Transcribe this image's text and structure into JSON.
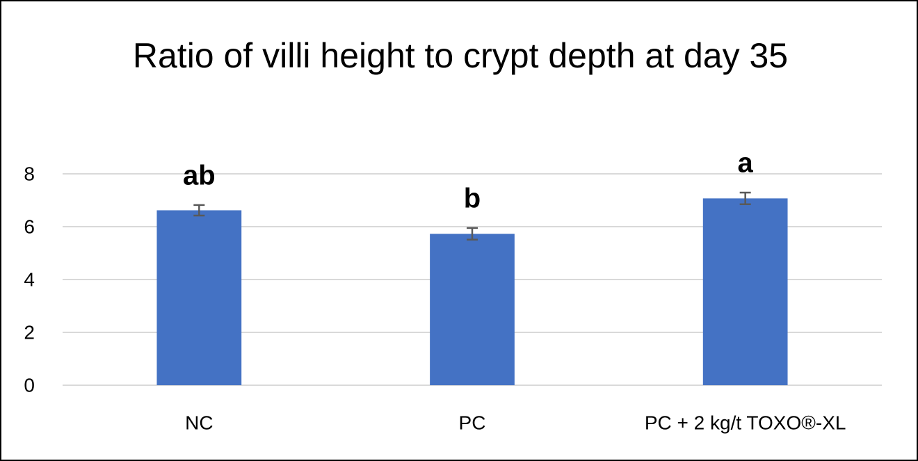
{
  "chart_data": {
    "type": "bar",
    "title": "Ratio of villi height to crypt depth at day 35",
    "categories": [
      "NC",
      "PC",
      "PC + 2 kg/t TOXO®-XL"
    ],
    "values": [
      6.62,
      5.73,
      7.07
    ],
    "errors": [
      0.2,
      0.22,
      0.22
    ],
    "annotations": [
      "ab",
      "b",
      "a"
    ],
    "color": "#4472c4",
    "ylim": [
      0,
      8
    ],
    "yticks": [
      0,
      2,
      4,
      6,
      8
    ],
    "grid": true
  }
}
